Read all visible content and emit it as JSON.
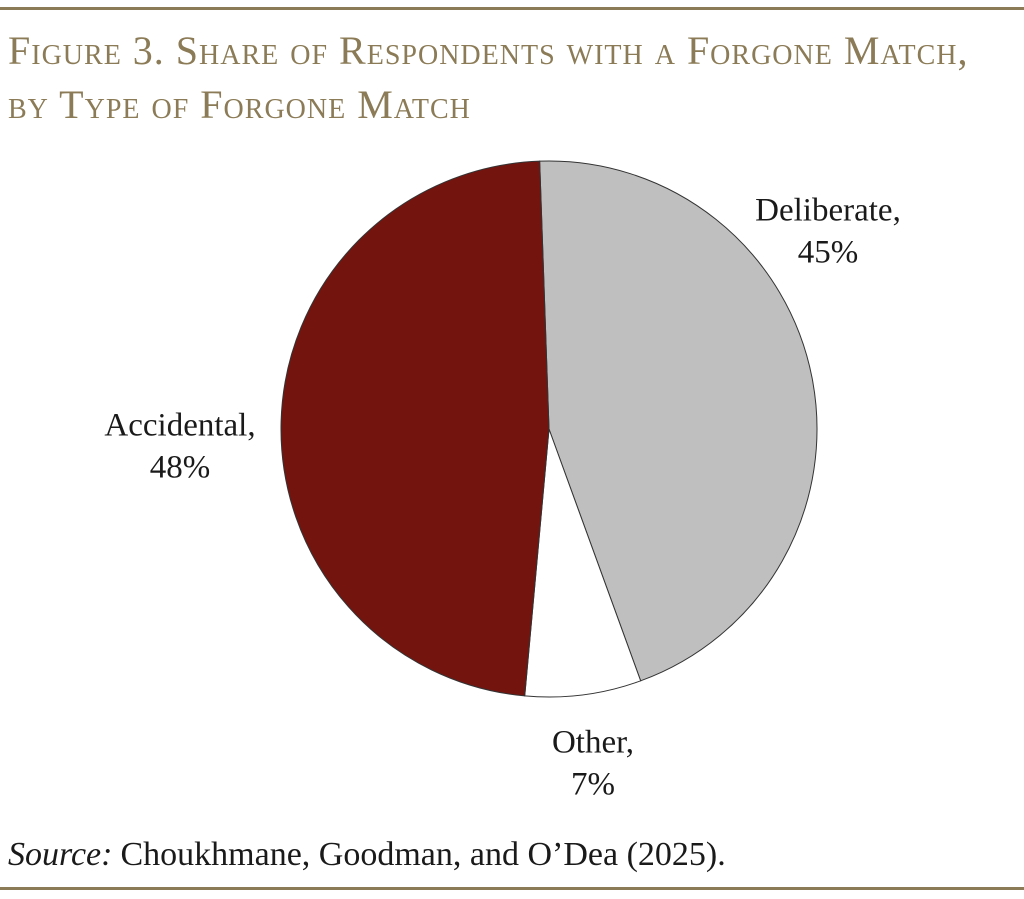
{
  "chart_data": {
    "type": "pie",
    "title": "Figure 3. Share of Respondents with a Forgone Match, by Type of Forgone Match",
    "categories": [
      "Deliberate,",
      "Other,",
      "Accidental,"
    ],
    "values": [
      45,
      7,
      48
    ],
    "value_labels": [
      "45%",
      "7%",
      "48%"
    ],
    "colors": [
      "#bfbfbf",
      "#ffffff",
      "#74140f"
    ],
    "source_label": "Source:",
    "source": "Choukhmane, Goodman, and O’Dea (2025)."
  }
}
